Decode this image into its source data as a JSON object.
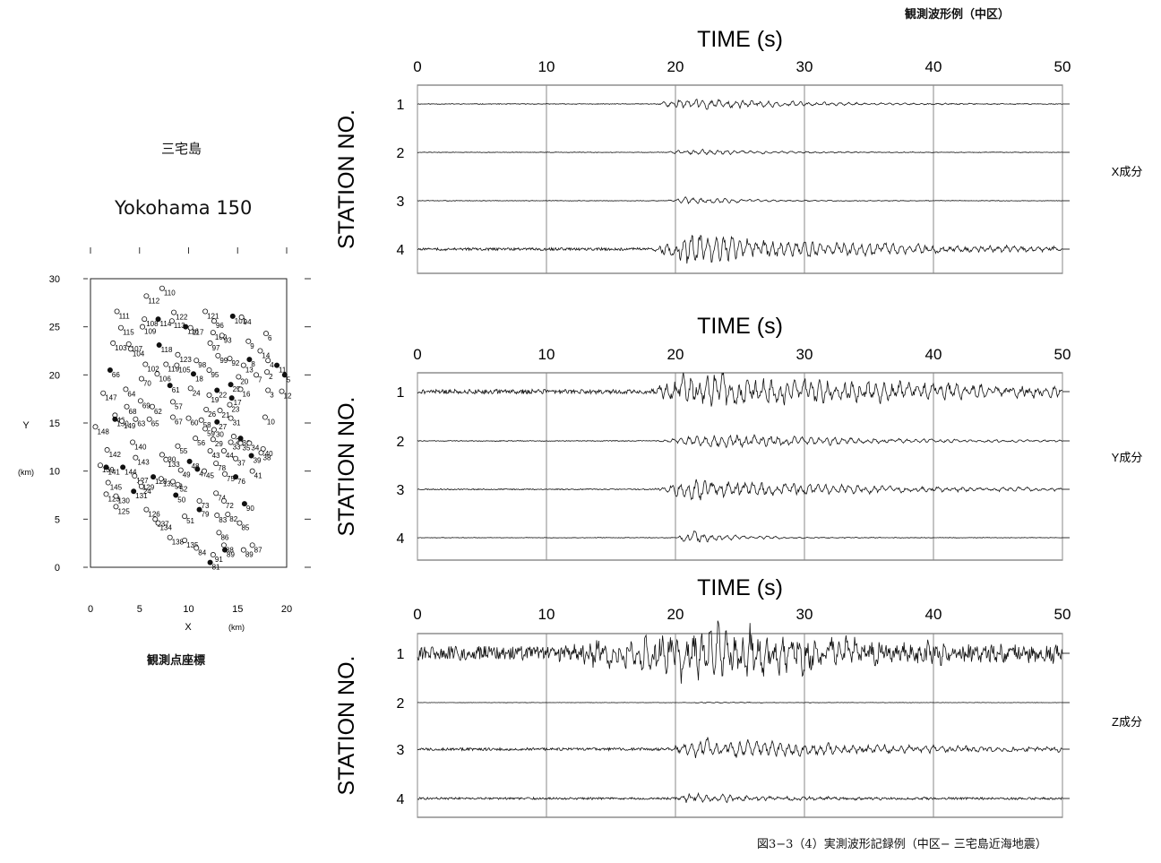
{
  "header_title": "観測波形例（中区）",
  "footer_caption": "図3−3（4）実測波形記録例（中区− 三宅島近海地震）",
  "map": {
    "title_jp": "三宅島",
    "title": "Yokohama 150",
    "caption": "観測点座標",
    "xlabel": "X",
    "ylabel": "Y",
    "unit": "(km)",
    "x_ticks": [
      "0",
      "5",
      "10",
      "15",
      "20"
    ],
    "y_ticks": [
      "0",
      "5",
      "10",
      "15",
      "20",
      "25",
      "30"
    ],
    "xlim": [
      0,
      20
    ],
    "ylim": [
      0,
      30
    ],
    "stations": [
      {
        "id": "110",
        "x": 7.3,
        "y": 29.0,
        "filled": false
      },
      {
        "id": "112",
        "x": 5.7,
        "y": 28.2,
        "filled": false
      },
      {
        "id": "111",
        "x": 2.7,
        "y": 26.6,
        "filled": false
      },
      {
        "id": "122",
        "x": 8.5,
        "y": 26.5,
        "filled": false
      },
      {
        "id": "121",
        "x": 11.7,
        "y": 26.6,
        "filled": false
      },
      {
        "id": "108",
        "x": 5.5,
        "y": 25.8,
        "filled": false
      },
      {
        "id": "114",
        "x": 6.9,
        "y": 25.8,
        "filled": true
      },
      {
        "id": "113",
        "x": 8.3,
        "y": 25.6,
        "filled": false
      },
      {
        "id": "101",
        "x": 14.5,
        "y": 26.1,
        "filled": true
      },
      {
        "id": "94",
        "x": 15.4,
        "y": 26.0,
        "filled": false
      },
      {
        "id": "96",
        "x": 12.6,
        "y": 25.6,
        "filled": false
      },
      {
        "id": "115",
        "x": 3.1,
        "y": 24.9,
        "filled": false
      },
      {
        "id": "109",
        "x": 5.3,
        "y": 25.0,
        "filled": false
      },
      {
        "id": "116",
        "x": 9.7,
        "y": 25.0,
        "filled": true
      },
      {
        "id": "117",
        "x": 10.2,
        "y": 24.9,
        "filled": false
      },
      {
        "id": "100",
        "x": 12.5,
        "y": 24.4,
        "filled": false
      },
      {
        "id": "93",
        "x": 13.4,
        "y": 24.1,
        "filled": false
      },
      {
        "id": "6",
        "x": 17.9,
        "y": 24.3,
        "filled": false
      },
      {
        "id": "103",
        "x": 2.3,
        "y": 23.3,
        "filled": false
      },
      {
        "id": "107",
        "x": 3.9,
        "y": 23.2,
        "filled": false
      },
      {
        "id": "104",
        "x": 4.1,
        "y": 22.7,
        "filled": false
      },
      {
        "id": "118",
        "x": 7.0,
        "y": 23.1,
        "filled": true
      },
      {
        "id": "97",
        "x": 12.2,
        "y": 23.3,
        "filled": false
      },
      {
        "id": "9",
        "x": 16.1,
        "y": 23.5,
        "filled": false
      },
      {
        "id": "14",
        "x": 17.3,
        "y": 22.5,
        "filled": false
      },
      {
        "id": "123",
        "x": 8.9,
        "y": 22.1,
        "filled": false
      },
      {
        "id": "99",
        "x": 13.0,
        "y": 22.0,
        "filled": false
      },
      {
        "id": "92",
        "x": 14.2,
        "y": 21.7,
        "filled": false
      },
      {
        "id": "8",
        "x": 16.2,
        "y": 21.6,
        "filled": true
      },
      {
        "id": "4",
        "x": 18.1,
        "y": 21.5,
        "filled": false
      },
      {
        "id": "11",
        "x": 19.0,
        "y": 21.0,
        "filled": true
      },
      {
        "id": "102",
        "x": 5.6,
        "y": 21.1,
        "filled": false
      },
      {
        "id": "119",
        "x": 7.7,
        "y": 21.1,
        "filled": false
      },
      {
        "id": "105",
        "x": 8.8,
        "y": 21.0,
        "filled": false
      },
      {
        "id": "98",
        "x": 10.8,
        "y": 21.5,
        "filled": false
      },
      {
        "id": "13",
        "x": 15.6,
        "y": 21.0,
        "filled": false
      },
      {
        "id": "2",
        "x": 18.0,
        "y": 20.3,
        "filled": false
      },
      {
        "id": "5",
        "x": 19.8,
        "y": 20.0,
        "filled": true
      },
      {
        "id": "66",
        "x": 2.0,
        "y": 20.5,
        "filled": true
      },
      {
        "id": "106",
        "x": 6.8,
        "y": 20.1,
        "filled": false
      },
      {
        "id": "18",
        "x": 10.5,
        "y": 20.1,
        "filled": true
      },
      {
        "id": "95",
        "x": 12.1,
        "y": 20.5,
        "filled": false
      },
      {
        "id": "20",
        "x": 15.1,
        "y": 19.8,
        "filled": false
      },
      {
        "id": "7",
        "x": 16.9,
        "y": 20.0,
        "filled": false
      },
      {
        "id": "70",
        "x": 5.2,
        "y": 19.6,
        "filled": false
      },
      {
        "id": "61",
        "x": 8.1,
        "y": 18.9,
        "filled": true
      },
      {
        "id": "24",
        "x": 10.2,
        "y": 18.6,
        "filled": false
      },
      {
        "id": "25",
        "x": 14.3,
        "y": 19.0,
        "filled": true
      },
      {
        "id": "16",
        "x": 15.3,
        "y": 18.5,
        "filled": false
      },
      {
        "id": "3",
        "x": 18.1,
        "y": 18.4,
        "filled": false
      },
      {
        "id": "12",
        "x": 19.5,
        "y": 18.3,
        "filled": false
      },
      {
        "id": "64",
        "x": 3.6,
        "y": 18.5,
        "filled": false
      },
      {
        "id": "22",
        "x": 12.9,
        "y": 18.4,
        "filled": true
      },
      {
        "id": "147",
        "x": 1.3,
        "y": 18.1,
        "filled": false
      },
      {
        "id": "19",
        "x": 12.1,
        "y": 17.9,
        "filled": false
      },
      {
        "id": "17",
        "x": 14.4,
        "y": 17.6,
        "filled": true
      },
      {
        "id": "69",
        "x": 5.1,
        "y": 17.3,
        "filled": false
      },
      {
        "id": "57",
        "x": 8.4,
        "y": 17.2,
        "filled": false
      },
      {
        "id": "23",
        "x": 14.2,
        "y": 16.9,
        "filled": false
      },
      {
        "id": "68",
        "x": 3.7,
        "y": 16.7,
        "filled": false
      },
      {
        "id": "62",
        "x": 6.3,
        "y": 16.7,
        "filled": false
      },
      {
        "id": "26",
        "x": 11.8,
        "y": 16.4,
        "filled": false
      },
      {
        "id": "21",
        "x": 13.2,
        "y": 16.3,
        "filled": false
      },
      {
        "id": "46",
        "x": 2.5,
        "y": 15.8,
        "filled": false
      },
      {
        "id": "150",
        "x": 2.5,
        "y": 15.4,
        "filled": true
      },
      {
        "id": "149",
        "x": 3.2,
        "y": 15.2,
        "filled": false
      },
      {
        "id": "63",
        "x": 4.6,
        "y": 15.4,
        "filled": false
      },
      {
        "id": "65",
        "x": 6.0,
        "y": 15.4,
        "filled": false
      },
      {
        "id": "67",
        "x": 8.4,
        "y": 15.6,
        "filled": false
      },
      {
        "id": "60",
        "x": 10.0,
        "y": 15.5,
        "filled": false
      },
      {
        "id": "58",
        "x": 11.3,
        "y": 15.3,
        "filled": false
      },
      {
        "id": "27",
        "x": 12.9,
        "y": 15.1,
        "filled": true
      },
      {
        "id": "31",
        "x": 14.3,
        "y": 15.5,
        "filled": false
      },
      {
        "id": "10",
        "x": 17.8,
        "y": 15.6,
        "filled": false
      },
      {
        "id": "148",
        "x": 0.5,
        "y": 14.6,
        "filled": false
      },
      {
        "id": "59",
        "x": 11.7,
        "y": 14.4,
        "filled": false
      },
      {
        "id": "30",
        "x": 12.6,
        "y": 14.3,
        "filled": false
      },
      {
        "id": "28",
        "x": 14.6,
        "y": 13.6,
        "filled": false
      },
      {
        "id": "36",
        "x": 15.3,
        "y": 13.4,
        "filled": true
      },
      {
        "id": "56",
        "x": 10.7,
        "y": 13.4,
        "filled": false
      },
      {
        "id": "29",
        "x": 12.5,
        "y": 13.3,
        "filled": false
      },
      {
        "id": "33",
        "x": 14.3,
        "y": 13.0,
        "filled": false
      },
      {
        "id": "35",
        "x": 15.3,
        "y": 12.9,
        "filled": false
      },
      {
        "id": "34",
        "x": 16.2,
        "y": 12.9,
        "filled": false
      },
      {
        "id": "140",
        "x": 4.3,
        "y": 13.0,
        "filled": false
      },
      {
        "id": "55",
        "x": 8.9,
        "y": 12.6,
        "filled": false
      },
      {
        "id": "142",
        "x": 1.7,
        "y": 12.2,
        "filled": false
      },
      {
        "id": "43",
        "x": 12.2,
        "y": 12.1,
        "filled": false
      },
      {
        "id": "44",
        "x": 13.6,
        "y": 12.1,
        "filled": false
      },
      {
        "id": "40",
        "x": 17.6,
        "y": 12.3,
        "filled": false
      },
      {
        "id": "38",
        "x": 17.4,
        "y": 11.9,
        "filled": false
      },
      {
        "id": "39",
        "x": 16.4,
        "y": 11.6,
        "filled": true
      },
      {
        "id": "37",
        "x": 14.8,
        "y": 11.3,
        "filled": false
      },
      {
        "id": "143",
        "x": 4.6,
        "y": 11.4,
        "filled": false
      },
      {
        "id": "130",
        "x": 7.3,
        "y": 11.7,
        "filled": false
      },
      {
        "id": "133",
        "x": 7.7,
        "y": 11.2,
        "filled": false
      },
      {
        "id": "48",
        "x": 10.1,
        "y": 11.0,
        "filled": true
      },
      {
        "id": "78",
        "x": 12.8,
        "y": 10.8,
        "filled": false
      },
      {
        "id": "139",
        "x": 1.0,
        "y": 10.6,
        "filled": false
      },
      {
        "id": "141",
        "x": 1.6,
        "y": 10.4,
        "filled": true
      },
      {
        "id": "144",
        "x": 3.3,
        "y": 10.4,
        "filled": true
      },
      {
        "id": "49",
        "x": 9.2,
        "y": 10.1,
        "filled": false
      },
      {
        "id": "47",
        "x": 10.9,
        "y": 10.2,
        "filled": true
      },
      {
        "id": "45",
        "x": 11.6,
        "y": 10.0,
        "filled": false
      },
      {
        "id": "75",
        "x": 13.7,
        "y": 9.7,
        "filled": false
      },
      {
        "id": "41",
        "x": 16.5,
        "y": 10.0,
        "filled": false
      },
      {
        "id": "76",
        "x": 14.8,
        "y": 9.4,
        "filled": true
      },
      {
        "id": "127",
        "x": 4.5,
        "y": 9.5,
        "filled": false
      },
      {
        "id": "128",
        "x": 6.4,
        "y": 9.4,
        "filled": true
      },
      {
        "id": "132",
        "x": 7.2,
        "y": 9.2,
        "filled": false
      },
      {
        "id": "145",
        "x": 1.8,
        "y": 8.8,
        "filled": false
      },
      {
        "id": "129",
        "x": 5.1,
        "y": 8.8,
        "filled": false
      },
      {
        "id": "53",
        "x": 8.4,
        "y": 8.9,
        "filled": false
      },
      {
        "id": "52",
        "x": 8.9,
        "y": 8.6,
        "filled": false
      },
      {
        "id": "24",
        "x": 5.2,
        "y": 8.4,
        "filled": false
      },
      {
        "id": "131",
        "x": 4.4,
        "y": 7.9,
        "filled": true
      },
      {
        "id": "50",
        "x": 8.7,
        "y": 7.5,
        "filled": true
      },
      {
        "id": "74",
        "x": 12.8,
        "y": 7.7,
        "filled": false
      },
      {
        "id": "123",
        "x": 1.6,
        "y": 7.6,
        "filled": false
      },
      {
        "id": "130",
        "x": 2.6,
        "y": 7.4,
        "filled": false
      },
      {
        "id": "73",
        "x": 11.1,
        "y": 6.9,
        "filled": false
      },
      {
        "id": "72",
        "x": 13.6,
        "y": 6.9,
        "filled": false
      },
      {
        "id": "90",
        "x": 15.7,
        "y": 6.6,
        "filled": true
      },
      {
        "id": "125",
        "x": 2.6,
        "y": 6.3,
        "filled": false
      },
      {
        "id": "79",
        "x": 11.1,
        "y": 6.0,
        "filled": true
      },
      {
        "id": "126",
        "x": 5.7,
        "y": 6.0,
        "filled": false
      },
      {
        "id": "83",
        "x": 12.9,
        "y": 5.4,
        "filled": false
      },
      {
        "id": "82",
        "x": 14.0,
        "y": 5.5,
        "filled": false
      },
      {
        "id": "51",
        "x": 9.6,
        "y": 5.3,
        "filled": false
      },
      {
        "id": "137",
        "x": 6.6,
        "y": 5.0,
        "filled": false
      },
      {
        "id": "134",
        "x": 6.9,
        "y": 4.6,
        "filled": false
      },
      {
        "id": "85",
        "x": 15.2,
        "y": 4.6,
        "filled": false
      },
      {
        "id": "86",
        "x": 13.1,
        "y": 3.6,
        "filled": false
      },
      {
        "id": "138",
        "x": 8.1,
        "y": 3.1,
        "filled": false
      },
      {
        "id": "135",
        "x": 9.6,
        "y": 2.8,
        "filled": false
      },
      {
        "id": "88",
        "x": 13.6,
        "y": 2.3,
        "filled": false
      },
      {
        "id": "87",
        "x": 16.5,
        "y": 2.3,
        "filled": false
      },
      {
        "id": "84",
        "x": 10.8,
        "y": 2.0,
        "filled": false
      },
      {
        "id": "89",
        "x": 13.7,
        "y": 1.8,
        "filled": true
      },
      {
        "id": "89",
        "x": 15.6,
        "y": 1.8,
        "filled": false
      },
      {
        "id": "91",
        "x": 12.5,
        "y": 1.3,
        "filled": false
      },
      {
        "id": "81",
        "x": 12.2,
        "y": 0.5,
        "filled": true
      }
    ]
  },
  "chart_data": [
    {
      "type": "line",
      "title": "TIME (s)",
      "ylabel": "STATION NO.",
      "component_label": "X成分",
      "xlim": [
        0,
        50
      ],
      "x_ticks": [
        "0",
        "10",
        "20",
        "30",
        "40",
        "50"
      ],
      "grid": true,
      "stations": [
        "1",
        "2",
        "3",
        "4"
      ],
      "series": [
        {
          "station": "1",
          "noise": 0.4,
          "amp": 8,
          "onset": 18.5,
          "peak": 20.5,
          "decay": 8,
          "seed": 11
        },
        {
          "station": "2",
          "noise": 0.3,
          "amp": 3.5,
          "onset": 19.0,
          "peak": 21,
          "decay": 7,
          "seed": 12
        },
        {
          "station": "3",
          "noise": 0.3,
          "amp": 4,
          "onset": 19.0,
          "peak": 21,
          "decay": 5,
          "seed": 13
        },
        {
          "station": "4",
          "noise": 1.5,
          "amp": 18,
          "onset": 18.0,
          "peak": 21,
          "decay": 14,
          "seed": 14
        }
      ]
    },
    {
      "type": "line",
      "title": "TIME (s)",
      "ylabel": "STATION NO.",
      "component_label": "Y成分",
      "xlim": [
        0,
        50
      ],
      "x_ticks": [
        "0",
        "10",
        "20",
        "30",
        "40",
        "50"
      ],
      "grid": true,
      "stations": [
        "1",
        "2",
        "3",
        "4"
      ],
      "series": [
        {
          "station": "1",
          "noise": 2.5,
          "amp": 24,
          "onset": 18.0,
          "peak": 21,
          "decay": 18,
          "seed": 21
        },
        {
          "station": "2",
          "noise": 0.4,
          "amp": 9,
          "onset": 18.5,
          "peak": 23,
          "decay": 12,
          "seed": 22
        },
        {
          "station": "3",
          "noise": 0.6,
          "amp": 12,
          "onset": 18.0,
          "peak": 21.5,
          "decay": 14,
          "seed": 23
        },
        {
          "station": "4",
          "noise": 0.3,
          "amp": 7,
          "onset": 20.0,
          "peak": 21,
          "decay": 4,
          "seed": 24
        }
      ]
    },
    {
      "type": "line",
      "title": "TIME (s)",
      "ylabel": "STATION NO.",
      "component_label": "Z成分",
      "xlim": [
        0,
        50
      ],
      "x_ticks": [
        "0",
        "10",
        "20",
        "30",
        "40",
        "50"
      ],
      "grid": true,
      "stations": [
        "1",
        "2",
        "3",
        "4"
      ],
      "series": [
        {
          "station": "1",
          "noise": 8,
          "amp": 32,
          "onset": 10.0,
          "peak": 22,
          "decay": 14,
          "seed": 31
        },
        {
          "station": "2",
          "noise": 0.2,
          "amp": 0.6,
          "onset": 20.0,
          "peak": 22,
          "decay": 5,
          "seed": 32
        },
        {
          "station": "3",
          "noise": 1.5,
          "amp": 11,
          "onset": 19.0,
          "peak": 22,
          "decay": 16,
          "seed": 33
        },
        {
          "station": "4",
          "noise": 1.2,
          "amp": 5,
          "onset": 20.0,
          "peak": 21,
          "decay": 8,
          "seed": 34
        }
      ]
    }
  ]
}
